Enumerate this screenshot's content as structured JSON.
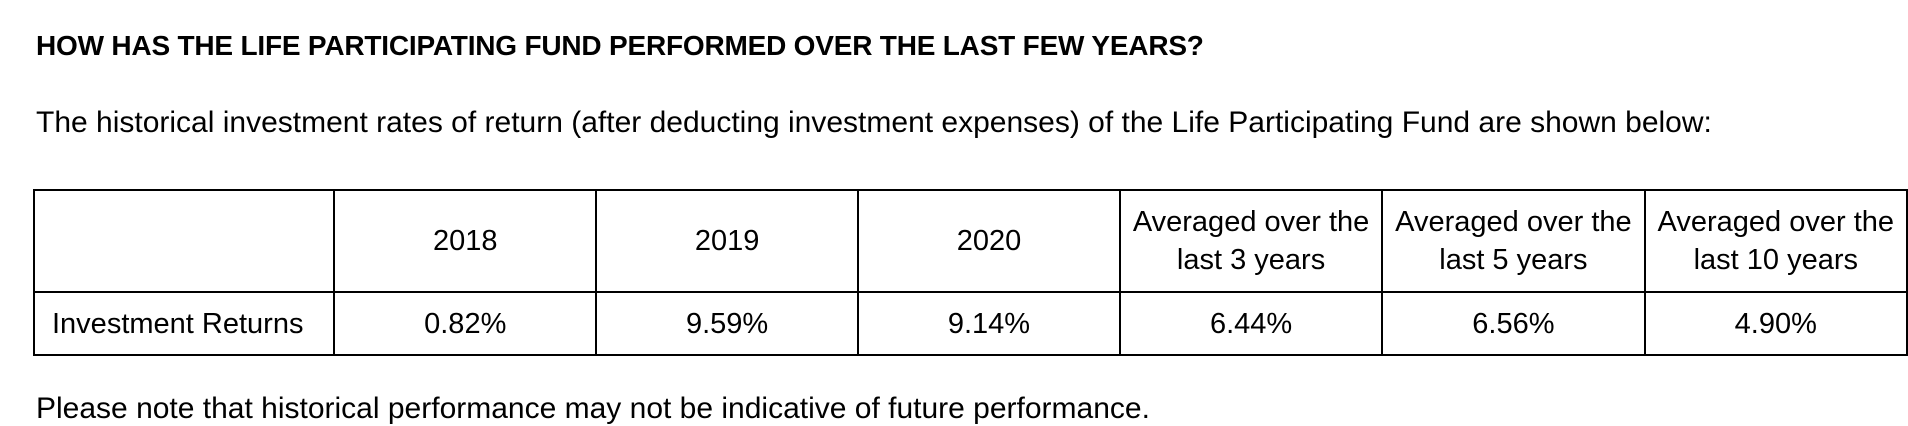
{
  "heading": "HOW HAS THE LIFE PARTICIPATING FUND PERFORMED OVER THE LAST FEW YEARS?",
  "intro": "The historical investment rates of return (after deducting investment expenses) of the Life Participating Fund are shown below:",
  "table": {
    "corner": "",
    "columns": [
      {
        "line1": "2018",
        "line2": ""
      },
      {
        "line1": "2019",
        "line2": ""
      },
      {
        "line1": "2020",
        "line2": ""
      },
      {
        "line1": "Averaged over the",
        "line2": "last 3 years"
      },
      {
        "line1": "Averaged over the",
        "line2": "last 5 years"
      },
      {
        "line1": "Averaged over the",
        "line2": "last 10 years"
      }
    ],
    "row": {
      "label": "Investment Returns",
      "values": [
        "0.82%",
        "9.59%",
        "9.14%",
        "6.44%",
        "6.56%",
        "4.90%"
      ]
    }
  },
  "cut_off_text": "Please note that historical performance may not be indicative of future performance."
}
